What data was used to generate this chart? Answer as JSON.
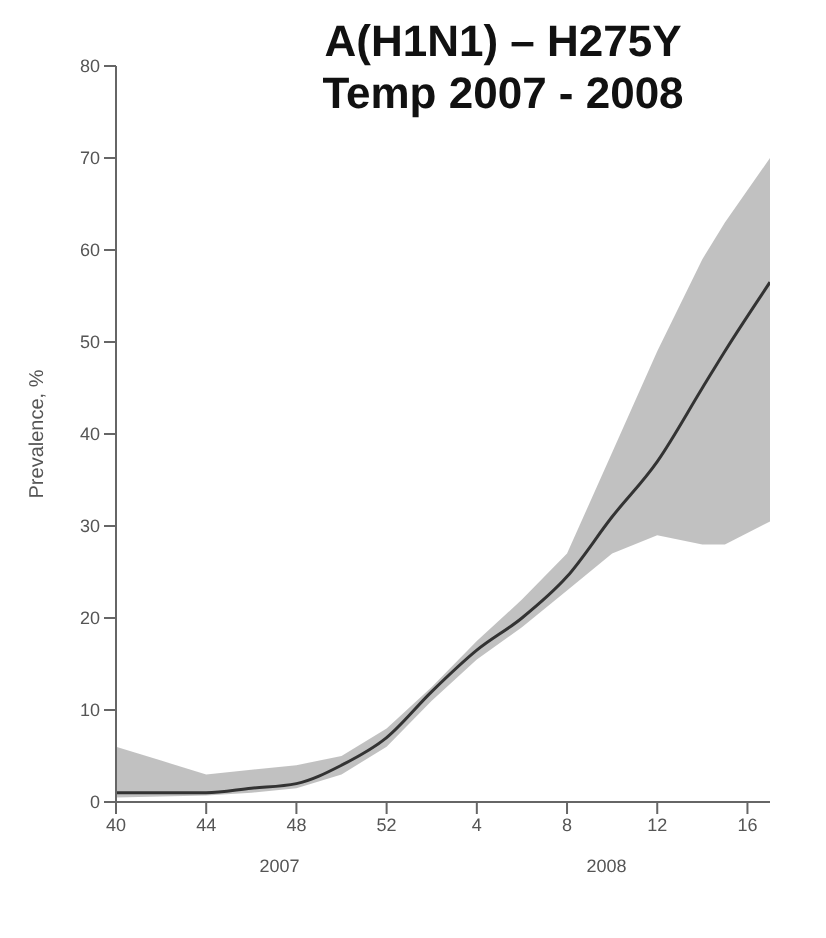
{
  "chart_data": {
    "type": "line",
    "title": "A(H1N1) – H275Y\nTemp 2007 - 2008",
    "ylabel": "Prevalence, %",
    "annotations": [
      "2007",
      "2008"
    ],
    "x": [
      "2007-10-01",
      "2007-10-15",
      "2007-10-29",
      "2007-11-12",
      "2007-11-26",
      "2007-12-10",
      "2007-12-24",
      "2008-01-07",
      "2008-01-21",
      "2008-02-04",
      "2008-02-18",
      "2008-03-03",
      "2008-03-17",
      "2008-03-31",
      "2008-04-07",
      "2008-04-21"
    ],
    "series": [
      {
        "color": "#333333",
        "values": [
          1,
          1,
          1,
          1.5,
          2,
          4,
          7,
          12,
          16.5,
          20,
          24.5,
          31,
          37,
          45,
          49,
          56.5
        ],
        "lower": [
          0.5,
          0.6,
          0.7,
          1,
          1.5,
          3,
          6,
          11,
          15.5,
          19,
          23,
          27,
          29,
          28,
          28,
          30.5
        ],
        "upper": [
          6,
          4.5,
          3,
          3.5,
          4,
          5,
          8,
          12.5,
          17.5,
          22,
          27,
          38,
          49,
          59,
          63,
          70
        ]
      }
    ],
    "xlim": [
      "2007-10-01",
      "2008-04-21"
    ],
    "xticks": [
      {
        "value": "2007-10-01",
        "label": "40"
      },
      {
        "value": "2007-10-29",
        "label": "44"
      },
      {
        "value": "2007-11-26",
        "label": "48"
      },
      {
        "value": "2007-12-24",
        "label": "52"
      },
      {
        "value": "2008-01-21",
        "label": "4"
      },
      {
        "value": "2008-02-18",
        "label": "8"
      },
      {
        "value": "2008-03-17",
        "label": "12"
      },
      {
        "value": "2008-04-14",
        "label": "16"
      }
    ],
    "ylim": [
      0,
      80
    ],
    "yticks": [
      0,
      10,
      20,
      30,
      40,
      50,
      60,
      70,
      80
    ],
    "grid": false,
    "legend": false,
    "marker": "none",
    "line_style": "solid"
  }
}
